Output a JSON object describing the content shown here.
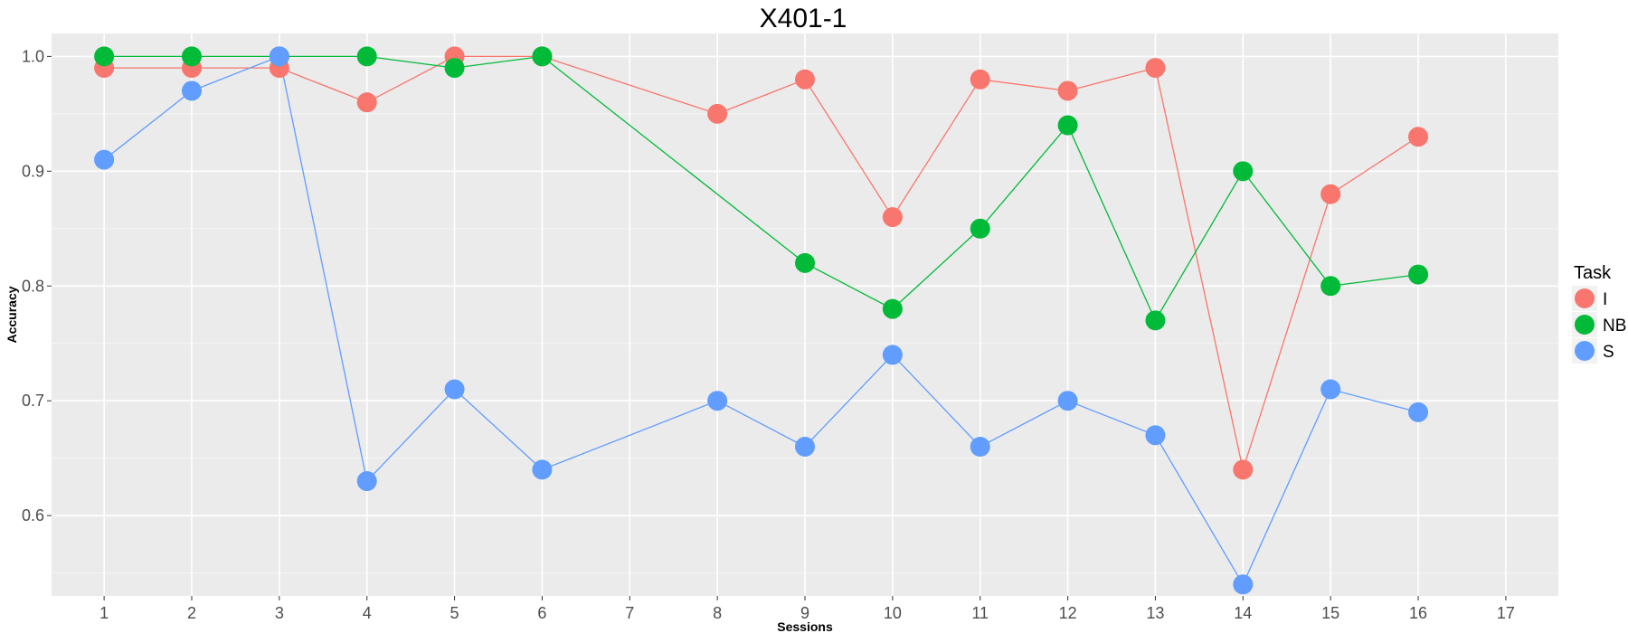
{
  "chart_data": {
    "type": "line",
    "title": "X401-1",
    "xlabel": "Sessions",
    "ylabel": "Accuracy",
    "x": [
      "1",
      "2",
      "3",
      "4",
      "5",
      "6",
      "7",
      "8",
      "9",
      "10",
      "11",
      "12",
      "13",
      "14",
      "15",
      "16",
      "17"
    ],
    "ylim": [
      0.53,
      1.02
    ],
    "yticks": [
      "0.6",
      "0.7",
      "0.8",
      "0.9",
      "1.0"
    ],
    "grid": true,
    "legend": {
      "title": "Task",
      "position": "right"
    },
    "series": [
      {
        "name": "I",
        "color": "#F8766D",
        "points": [
          {
            "x": "1",
            "y": 0.99
          },
          {
            "x": "2",
            "y": 0.99
          },
          {
            "x": "3",
            "y": 0.99
          },
          {
            "x": "4",
            "y": 0.96
          },
          {
            "x": "5",
            "y": 1.0
          },
          {
            "x": "6",
            "y": 1.0
          },
          {
            "x": "8",
            "y": 0.95
          },
          {
            "x": "9",
            "y": 0.98
          },
          {
            "x": "10",
            "y": 0.86
          },
          {
            "x": "11",
            "y": 0.98
          },
          {
            "x": "12",
            "y": 0.97
          },
          {
            "x": "13",
            "y": 0.99
          },
          {
            "x": "14",
            "y": 0.64
          },
          {
            "x": "15",
            "y": 0.88
          },
          {
            "x": "16",
            "y": 0.93
          }
        ]
      },
      {
        "name": "NB",
        "color": "#00BA38",
        "points": [
          {
            "x": "1",
            "y": 1.0
          },
          {
            "x": "2",
            "y": 1.0
          },
          {
            "x": "3",
            "y": 1.0
          },
          {
            "x": "4",
            "y": 1.0
          },
          {
            "x": "5",
            "y": 0.99
          },
          {
            "x": "6",
            "y": 1.0
          },
          {
            "x": "9",
            "y": 0.82
          },
          {
            "x": "10",
            "y": 0.78
          },
          {
            "x": "11",
            "y": 0.85
          },
          {
            "x": "12",
            "y": 0.94
          },
          {
            "x": "13",
            "y": 0.77
          },
          {
            "x": "14",
            "y": 0.9
          },
          {
            "x": "15",
            "y": 0.8
          },
          {
            "x": "16",
            "y": 0.81
          }
        ]
      },
      {
        "name": "S",
        "color": "#619CFF",
        "points": [
          {
            "x": "1",
            "y": 0.91
          },
          {
            "x": "2",
            "y": 0.97
          },
          {
            "x": "3",
            "y": 1.0
          },
          {
            "x": "4",
            "y": 0.63
          },
          {
            "x": "5",
            "y": 0.71
          },
          {
            "x": "6",
            "y": 0.64
          },
          {
            "x": "8",
            "y": 0.7
          },
          {
            "x": "9",
            "y": 0.66
          },
          {
            "x": "10",
            "y": 0.74
          },
          {
            "x": "11",
            "y": 0.66
          },
          {
            "x": "12",
            "y": 0.7
          },
          {
            "x": "13",
            "y": 0.67
          },
          {
            "x": "14",
            "y": 0.54
          },
          {
            "x": "15",
            "y": 0.71
          },
          {
            "x": "16",
            "y": 0.69
          }
        ]
      }
    ]
  }
}
